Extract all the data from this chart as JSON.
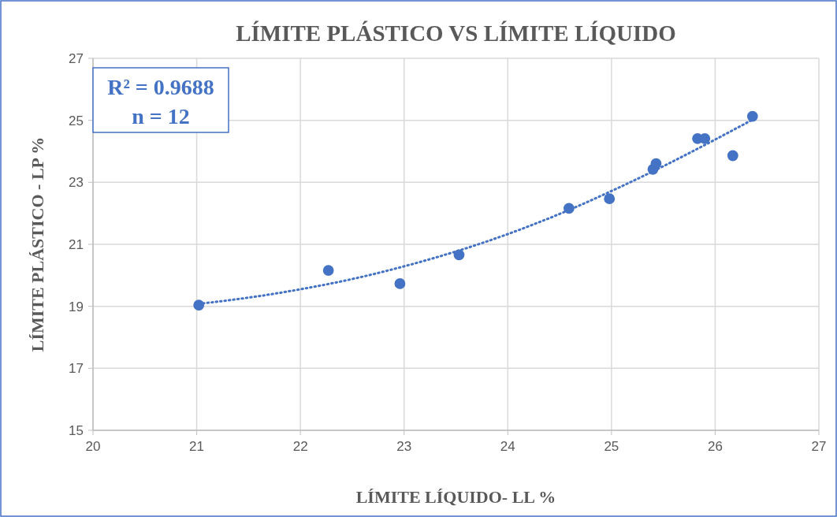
{
  "chart_data": {
    "type": "scatter",
    "title": "LÍMITE PLÁSTICO VS LÍMITE LÍQUIDO",
    "xlabel": "LÍMITE LÍQUIDO- LL %",
    "ylabel": "LÍMITE PLÁSTICO - LP %",
    "annotations": [
      "R² = 0.9688",
      "n = 12"
    ],
    "series": [
      {
        "color": "#4472c4",
        "marker": "circle",
        "x": [
          21.02,
          22.27,
          22.96,
          23.53,
          24.59,
          24.98,
          25.4,
          25.43,
          25.83,
          25.9,
          26.17,
          26.36
        ],
        "values": [
          19.04,
          20.16,
          19.73,
          20.66,
          22.16,
          22.47,
          23.42,
          23.6,
          24.41,
          24.41,
          23.86,
          25.13
        ]
      },
      {
        "type": "line",
        "color": "#4472c4",
        "line_style": "dotted",
        "x": [
          21.02,
          21.5,
          22,
          22.5,
          23,
          23.5,
          24,
          24.5,
          25,
          25.5,
          26,
          26.36
        ],
        "values": [
          19.08,
          19.28,
          19.55,
          19.88,
          20.29,
          20.77,
          21.33,
          21.98,
          22.72,
          23.52,
          24.38,
          25.02
        ]
      }
    ],
    "xlim": [
      20,
      27
    ],
    "ylim": [
      15,
      27
    ],
    "xticks": [
      20,
      21,
      22,
      23,
      24,
      25,
      26,
      27
    ],
    "yticks": [
      15,
      17,
      19,
      21,
      23,
      25,
      27
    ],
    "grid": true
  }
}
